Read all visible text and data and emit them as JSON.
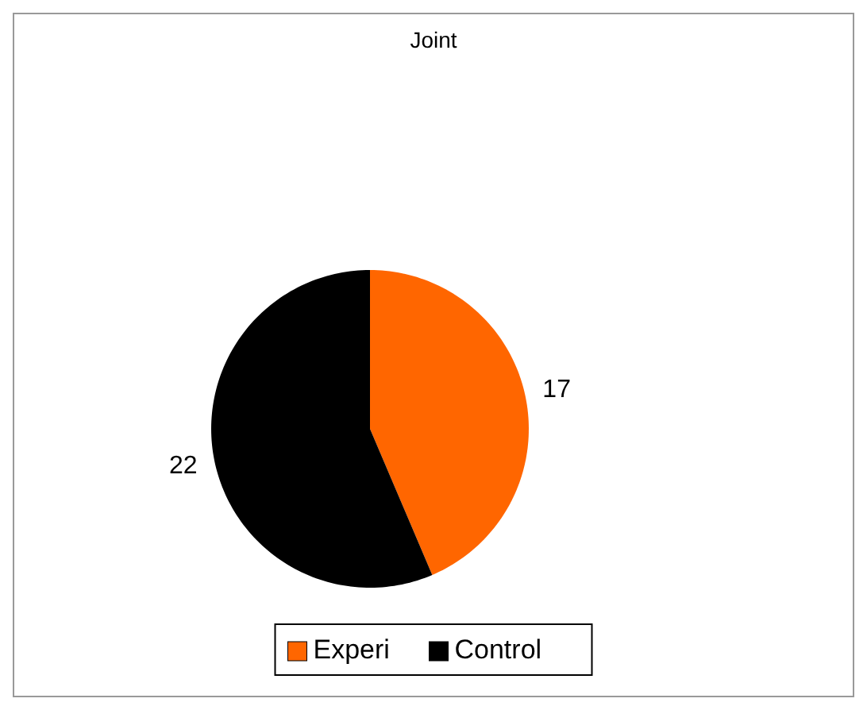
{
  "chart_data": {
    "type": "pie",
    "title": "Joint",
    "categories": [
      "Experi",
      "Control"
    ],
    "values": [
      17,
      22
    ],
    "colors": [
      "#ff6600",
      "#000000"
    ],
    "data_labels": true,
    "legend": "bottom"
  }
}
